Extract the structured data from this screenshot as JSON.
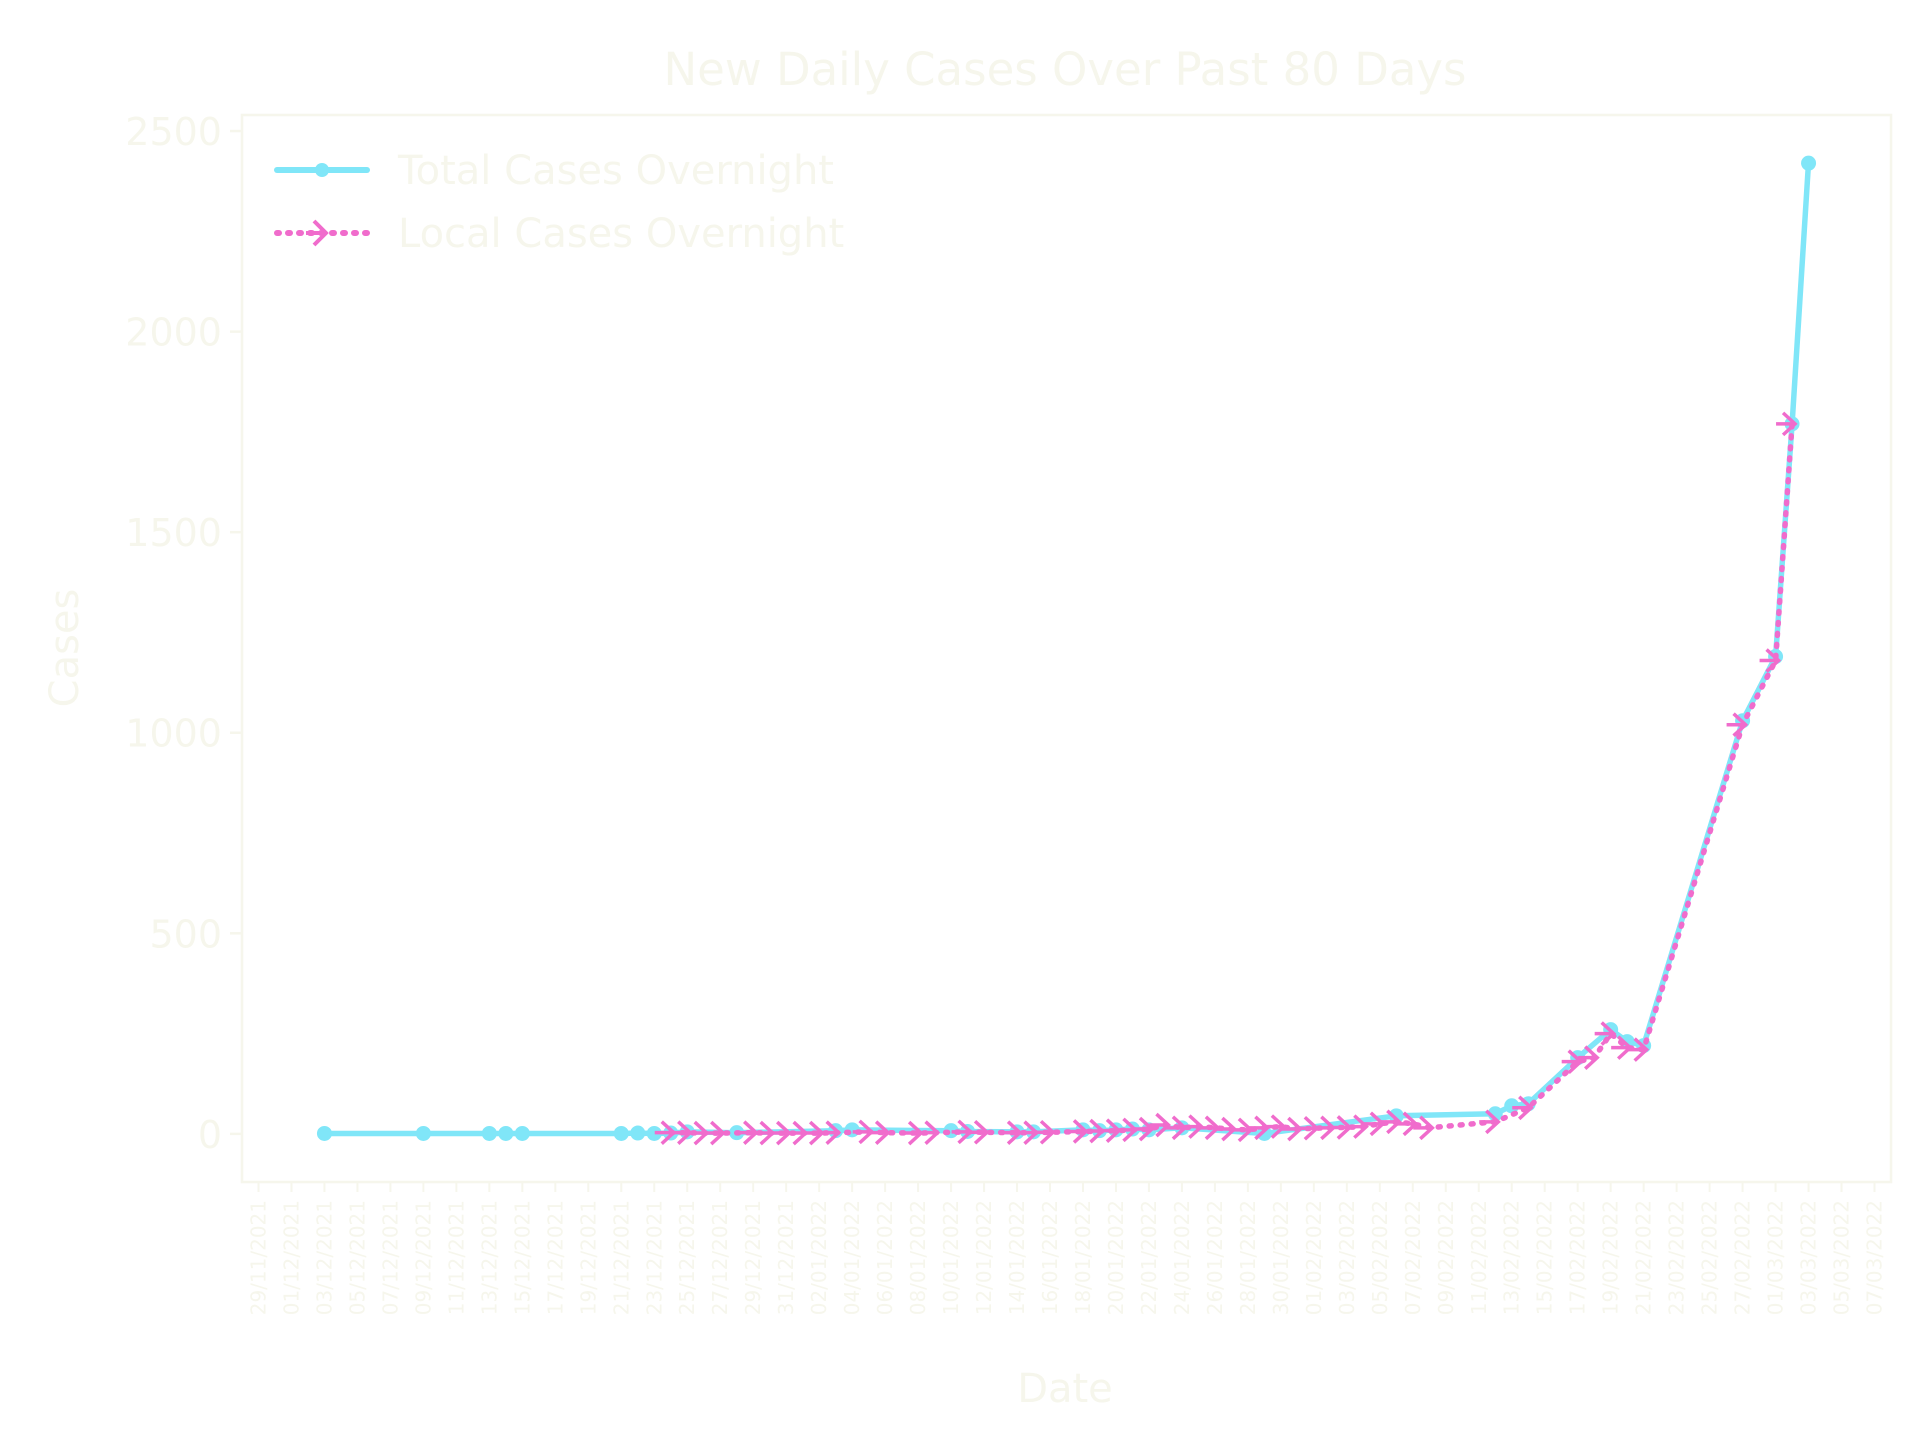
{
  "chart_data": {
    "type": "line",
    "title": "New Daily Cases Over Past 80 Days",
    "xlabel": "Date",
    "ylabel": "Cases",
    "ylim": [
      -120,
      2540
    ],
    "xlim": [
      "2021-11-28",
      "2022-03-08"
    ],
    "y_ticks": [
      0,
      500,
      1000,
      1500,
      2000,
      2500
    ],
    "x_tick_labels": [
      "29/11/2021",
      "01/12/2021",
      "03/12/2021",
      "05/12/2021",
      "07/12/2021",
      "09/12/2021",
      "11/12/2021",
      "13/12/2021",
      "15/12/2021",
      "17/12/2021",
      "19/12/2021",
      "21/12/2021",
      "23/12/2021",
      "25/12/2021",
      "27/12/2021",
      "29/12/2021",
      "31/12/2021",
      "02/01/2022",
      "04/01/2022",
      "06/01/2022",
      "08/01/2022",
      "10/01/2022",
      "12/01/2022",
      "14/01/2022",
      "16/01/2022",
      "18/01/2022",
      "20/01/2022",
      "22/01/2022",
      "24/01/2022",
      "26/01/2022",
      "28/01/2022",
      "30/01/2022",
      "01/02/2022",
      "03/02/2022",
      "05/02/2022",
      "07/02/2022",
      "09/02/2022",
      "11/02/2022",
      "13/02/2022",
      "15/02/2022",
      "17/02/2022",
      "19/02/2022",
      "21/02/2022",
      "23/02/2022",
      "25/02/2022",
      "27/02/2022",
      "01/03/2022",
      "03/03/2022",
      "05/03/2022",
      "07/03/2022"
    ],
    "grid": false,
    "legend_position": "upper-left",
    "series": [
      {
        "name": "Total Cases Overnight",
        "color": "#80e6f8",
        "line_style": "solid",
        "marker": "circle",
        "points": [
          [
            "2021-12-03",
            1
          ],
          [
            "2021-12-09",
            1
          ],
          [
            "2021-12-13",
            1
          ],
          [
            "2021-12-14",
            1
          ],
          [
            "2021-12-15",
            1
          ],
          [
            "2021-12-21",
            1
          ],
          [
            "2021-12-22",
            2
          ],
          [
            "2021-12-23",
            1
          ],
          [
            "2021-12-24",
            2
          ],
          [
            "2021-12-25",
            5
          ],
          [
            "2021-12-28",
            3
          ],
          [
            "2022-01-03",
            8
          ],
          [
            "2022-01-04",
            10
          ],
          [
            "2022-01-10",
            8
          ],
          [
            "2022-01-11",
            6
          ],
          [
            "2022-01-14",
            5
          ],
          [
            "2022-01-15",
            5
          ],
          [
            "2022-01-18",
            10
          ],
          [
            "2022-01-19",
            8
          ],
          [
            "2022-01-20",
            10
          ],
          [
            "2022-01-21",
            12
          ],
          [
            "2022-01-22",
            10
          ],
          [
            "2022-01-24",
            15
          ],
          [
            "2022-01-29",
            1
          ],
          [
            "2022-02-06",
            45
          ],
          [
            "2022-02-12",
            50
          ],
          [
            "2022-02-13",
            70
          ],
          [
            "2022-02-14",
            75
          ],
          [
            "2022-02-17",
            190
          ],
          [
            "2022-02-19",
            260
          ],
          [
            "2022-02-20",
            230
          ],
          [
            "2022-02-21",
            220
          ],
          [
            "2022-02-27",
            1030
          ],
          [
            "2022-03-01",
            1190
          ],
          [
            "2022-03-02",
            1770
          ],
          [
            "2022-03-03",
            2420
          ]
        ]
      },
      {
        "name": "Local Cases Overnight",
        "color": "#f06ccc",
        "line_style": "dotted",
        "marker": "tri_right",
        "points": [
          [
            "2021-12-24",
            3
          ],
          [
            "2021-12-25",
            3
          ],
          [
            "2021-12-26",
            2
          ],
          [
            "2021-12-27",
            2
          ],
          [
            "2021-12-29",
            3
          ],
          [
            "2021-12-30",
            2
          ],
          [
            "2021-12-31",
            2
          ],
          [
            "2022-01-01",
            2
          ],
          [
            "2022-01-02",
            2
          ],
          [
            "2022-01-03",
            3
          ],
          [
            "2022-01-05",
            5
          ],
          [
            "2022-01-06",
            3
          ],
          [
            "2022-01-08",
            2
          ],
          [
            "2022-01-09",
            3
          ],
          [
            "2022-01-11",
            5
          ],
          [
            "2022-01-12",
            4
          ],
          [
            "2022-01-14",
            3
          ],
          [
            "2022-01-15",
            3
          ],
          [
            "2022-01-16",
            4
          ],
          [
            "2022-01-18",
            6
          ],
          [
            "2022-01-19",
            7
          ],
          [
            "2022-01-20",
            8
          ],
          [
            "2022-01-21",
            10
          ],
          [
            "2022-01-22",
            12
          ],
          [
            "2022-01-23",
            22
          ],
          [
            "2022-01-24",
            15
          ],
          [
            "2022-01-25",
            18
          ],
          [
            "2022-01-26",
            15
          ],
          [
            "2022-01-27",
            12
          ],
          [
            "2022-01-28",
            10
          ],
          [
            "2022-01-29",
            15
          ],
          [
            "2022-01-30",
            18
          ],
          [
            "2022-01-31",
            12
          ],
          [
            "2022-02-01",
            14
          ],
          [
            "2022-02-02",
            15
          ],
          [
            "2022-02-03",
            16
          ],
          [
            "2022-02-04",
            18
          ],
          [
            "2022-02-05",
            25
          ],
          [
            "2022-02-06",
            30
          ],
          [
            "2022-02-07",
            25
          ],
          [
            "2022-02-08",
            15
          ],
          [
            "2022-02-12",
            30
          ],
          [
            "2022-02-14",
            65
          ],
          [
            "2022-02-17",
            180
          ],
          [
            "2022-02-18",
            190
          ],
          [
            "2022-02-19",
            250
          ],
          [
            "2022-02-20",
            215
          ],
          [
            "2022-02-21",
            210
          ],
          [
            "2022-02-27",
            1020
          ],
          [
            "2022-03-01",
            1180
          ],
          [
            "2022-03-02",
            1770
          ]
        ]
      }
    ]
  }
}
